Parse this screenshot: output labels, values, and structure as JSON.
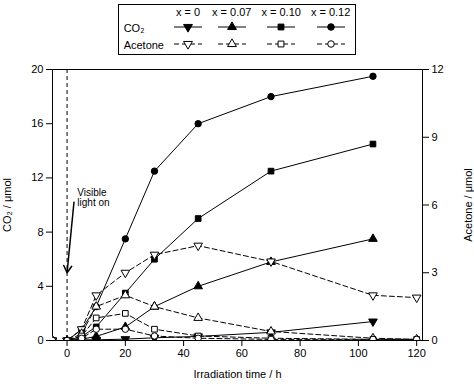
{
  "chart_data": {
    "type": "line",
    "xlabel": "Irradiation time / h",
    "ylabel": "CO₂ / μmol",
    "y2label": "Acetone / μmol",
    "xlim": [
      -5,
      122
    ],
    "xticks": [
      0,
      20,
      40,
      60,
      80,
      100,
      120
    ],
    "ylim": [
      0,
      20
    ],
    "yticks": [
      0,
      4,
      8,
      12,
      16,
      20
    ],
    "y2lim": [
      0,
      12
    ],
    "y2ticks": [
      0,
      3,
      6,
      9,
      12
    ],
    "grid": false,
    "legend": "top",
    "vlines": [
      0
    ],
    "annotations": [
      {
        "text": "Visible\nlight on",
        "x": 0,
        "y": 5.0,
        "text_x": 2.5,
        "text_y": 10.5
      }
    ],
    "series": [
      {
        "name": "x = 0",
        "group": "CO₂",
        "axis": "y",
        "color": "#000000",
        "marker": "triangle-down",
        "line_style": "solid",
        "x": [
          -5,
          0,
          5,
          10,
          20,
          30,
          45,
          70,
          105
        ],
        "values": [
          0,
          0,
          0.05,
          0.05,
          0.1,
          0.2,
          0.3,
          0.6,
          1.4
        ]
      },
      {
        "name": "x = 0.07",
        "group": "CO₂",
        "axis": "y",
        "color": "#000000",
        "marker": "triangle-up",
        "line_style": "solid",
        "x": [
          -5,
          0,
          5,
          10,
          20,
          30,
          45,
          70,
          105
        ],
        "values": [
          0,
          0,
          0.1,
          0.3,
          1.0,
          2.5,
          4.0,
          5.8,
          7.5
        ]
      },
      {
        "name": "x = 0.10",
        "group": "CO₂",
        "axis": "y",
        "color": "#000000",
        "marker": "square",
        "line_style": "solid",
        "x": [
          -5,
          0,
          5,
          10,
          20,
          30,
          45,
          70,
          105
        ],
        "values": [
          0,
          0,
          0.3,
          1.0,
          3.5,
          6.0,
          9.0,
          12.5,
          14.5
        ]
      },
      {
        "name": "x = 0.12",
        "group": "CO₂",
        "axis": "y",
        "color": "#000000",
        "marker": "circle",
        "line_style": "solid",
        "x": [
          -5,
          0,
          5,
          10,
          20,
          30,
          45,
          70,
          105
        ],
        "values": [
          0,
          0,
          0.8,
          2.5,
          7.5,
          12.5,
          16.0,
          18.0,
          19.5
        ]
      },
      {
        "name": "x = 0",
        "group": "Acetone",
        "axis": "y2",
        "color": "#000000",
        "marker": "triangle-down-open",
        "line_style": "dashed",
        "x": [
          -5,
          0,
          5,
          10,
          20,
          30,
          45,
          70,
          105,
          120
        ],
        "values": [
          0,
          0,
          0.5,
          2.0,
          3.0,
          3.8,
          4.2,
          3.5,
          2.0,
          1.9
        ]
      },
      {
        "name": "x = 0.07",
        "group": "Acetone",
        "axis": "y2",
        "color": "#000000",
        "marker": "triangle-up-open",
        "line_style": "dashed",
        "x": [
          -5,
          0,
          5,
          10,
          20,
          30,
          45,
          70,
          105,
          120
        ],
        "values": [
          0,
          0,
          0.3,
          1.5,
          2.0,
          1.5,
          1.0,
          0.4,
          0.1,
          0.05
        ]
      },
      {
        "name": "x = 0.10",
        "group": "Acetone",
        "axis": "y2",
        "color": "#000000",
        "marker": "square-open",
        "line_style": "dashed",
        "x": [
          -5,
          0,
          5,
          10,
          20,
          30,
          45,
          70,
          105,
          120
        ],
        "values": [
          0,
          0,
          0.2,
          1.0,
          1.2,
          0.5,
          0.2,
          0.1,
          0.05,
          0.05
        ]
      },
      {
        "name": "x = 0.12",
        "group": "Acetone",
        "axis": "y2",
        "color": "#000000",
        "marker": "circle-open",
        "line_style": "dashed",
        "x": [
          -5,
          0,
          5,
          10,
          20,
          30,
          45,
          70,
          105,
          120
        ],
        "values": [
          0,
          0,
          0.1,
          0.5,
          0.5,
          0.2,
          0.1,
          0.05,
          0.05,
          0.05
        ]
      }
    ]
  }
}
